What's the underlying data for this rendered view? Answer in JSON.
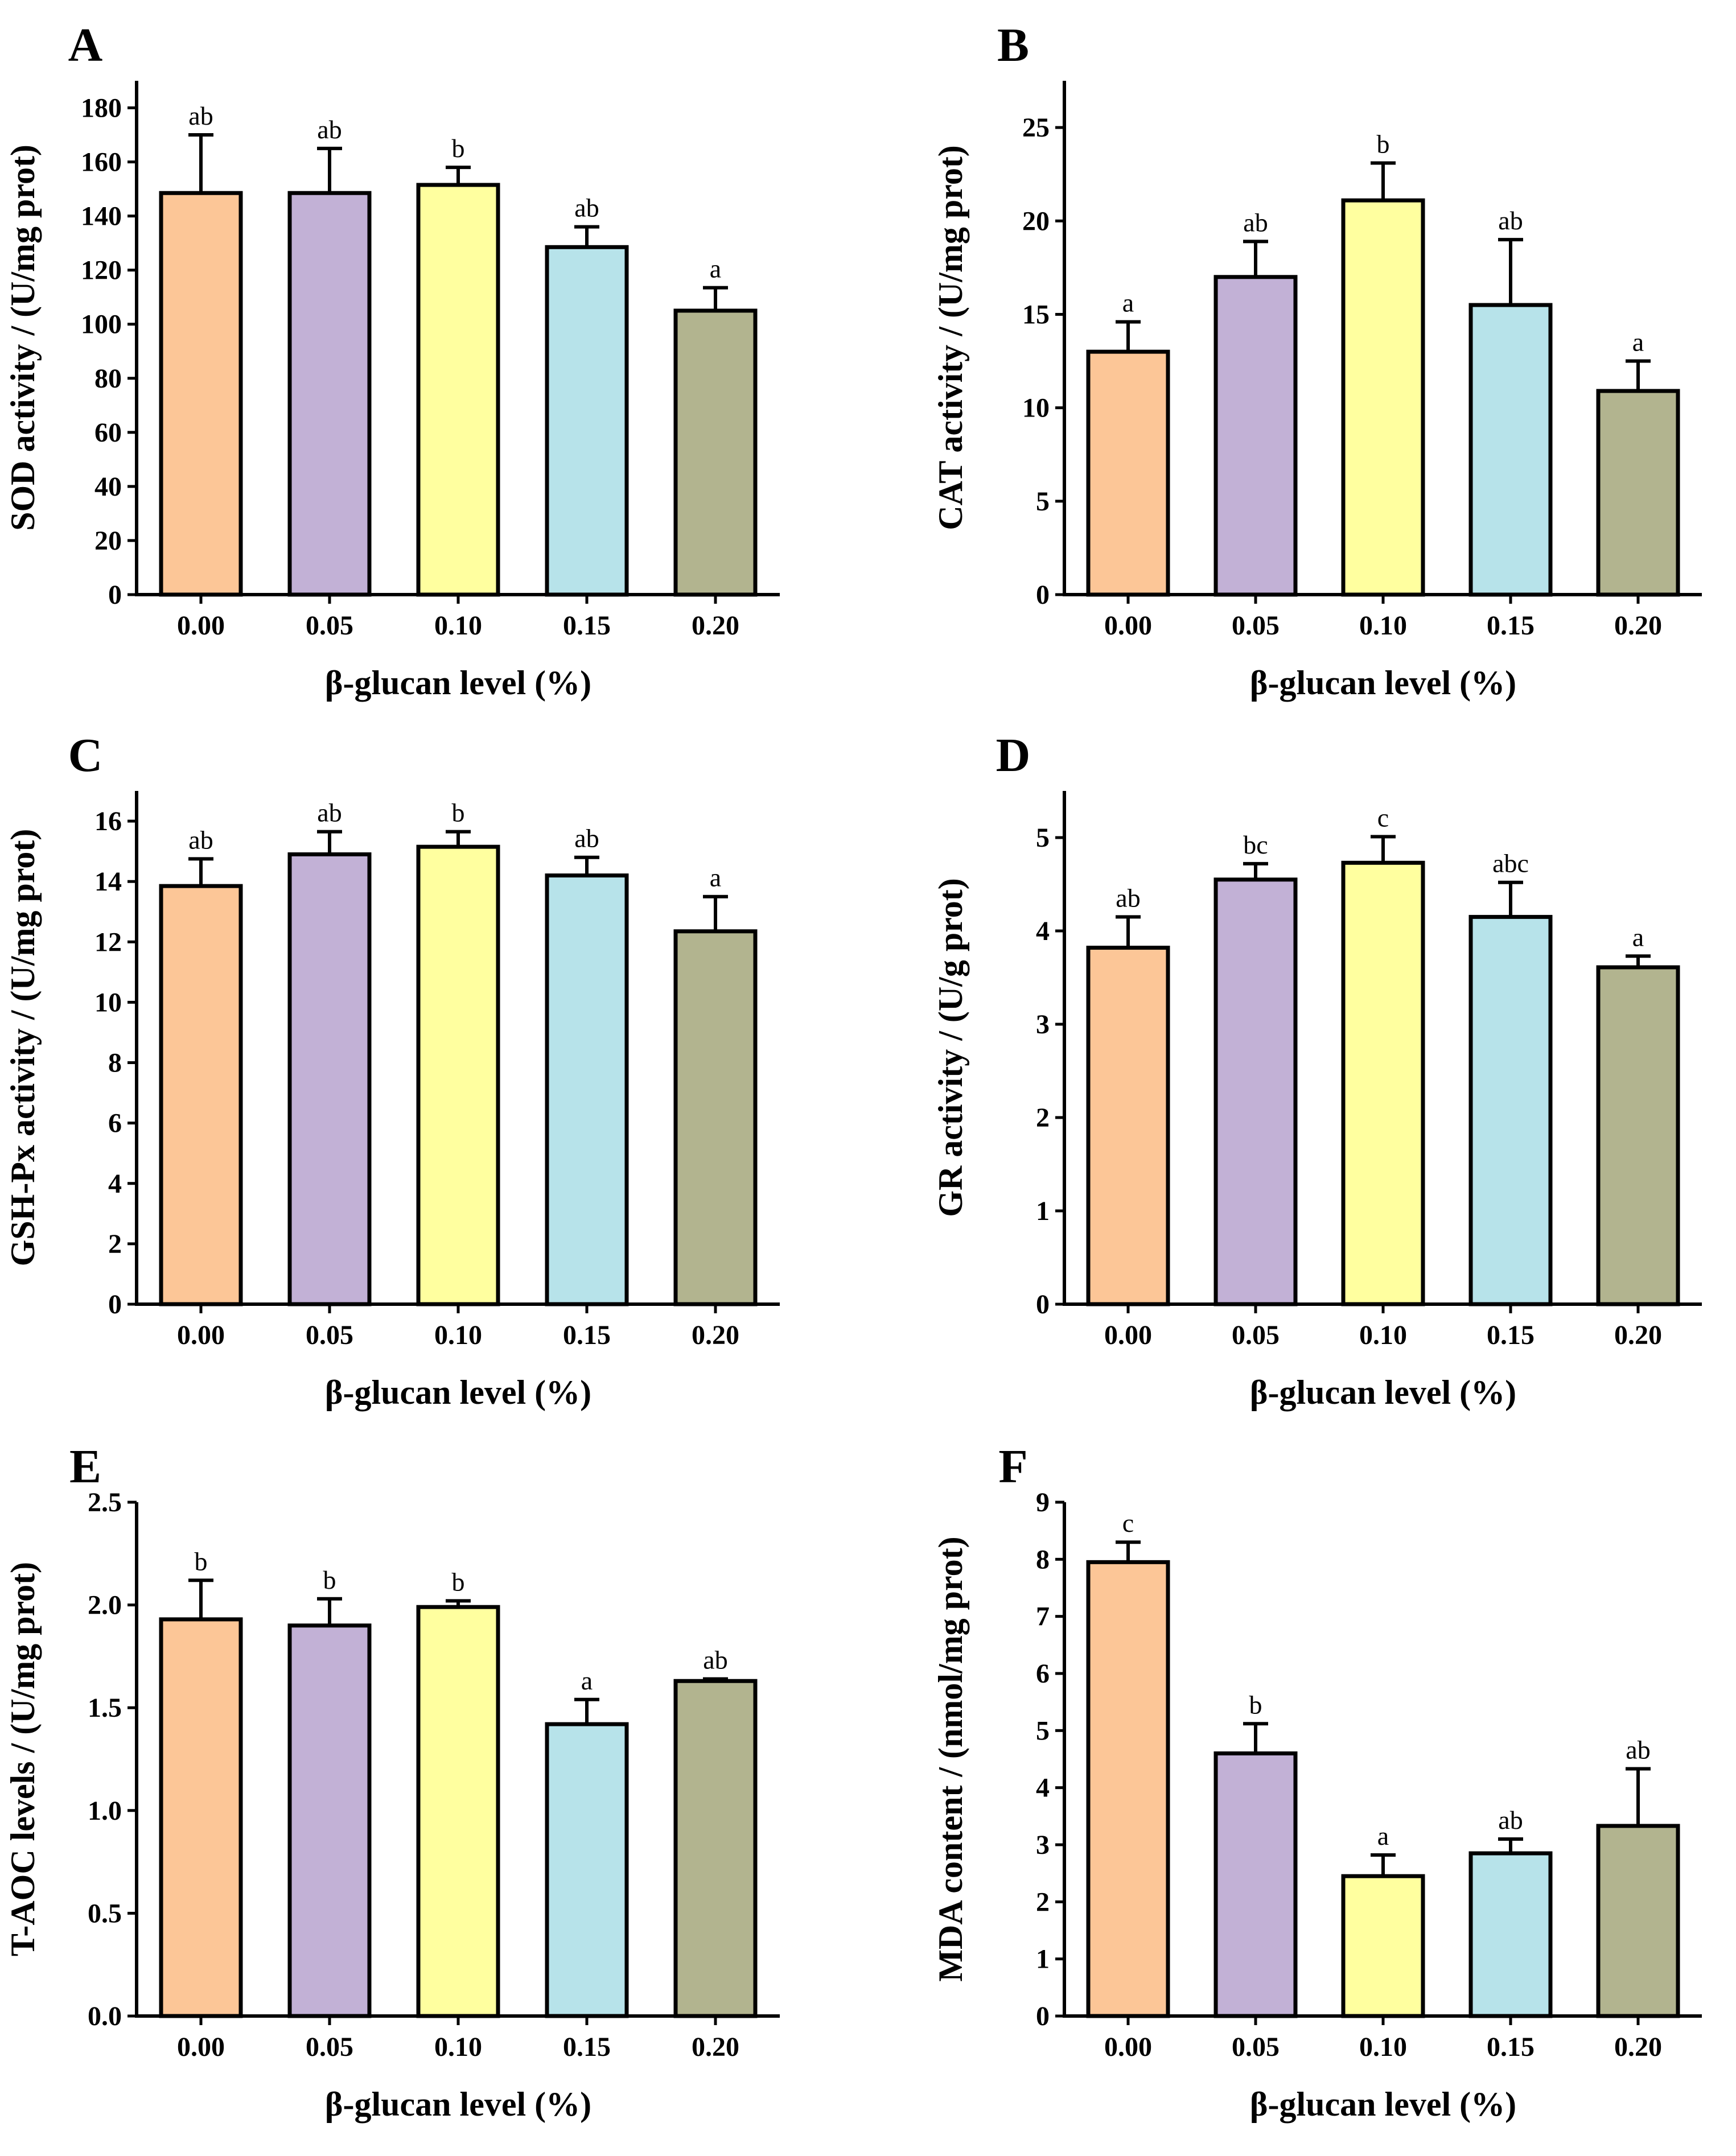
{
  "colors": [
    "#fcc697",
    "#c2b1d6",
    "#ffff9f",
    "#b7e3ea",
    "#b2b48f"
  ],
  "chart_data": [
    {
      "type": "bar",
      "panel": "A",
      "categories": [
        "0.00",
        "0.05",
        "0.10",
        "0.15",
        "0.20"
      ],
      "values": [
        148.5,
        148.5,
        151.5,
        128.5,
        105.0
      ],
      "errors": [
        21.5,
        16.5,
        6.5,
        7.5,
        8.5
      ],
      "labels": [
        "ab",
        "ab",
        "b",
        "ab",
        "a"
      ],
      "ylabel": "SOD activity / (U/mg prot)",
      "xlabel": "β-glucan level (%)",
      "ylim": [
        0,
        190
      ],
      "yticks": [
        0,
        20,
        40,
        60,
        80,
        100,
        120,
        140,
        160,
        180
      ],
      "ytick_labels": [
        "0",
        "20",
        "40",
        "60",
        "80",
        "100",
        "120",
        "140",
        "160",
        "180"
      ]
    },
    {
      "type": "bar",
      "panel": "B",
      "categories": [
        "0.00",
        "0.05",
        "0.10",
        "0.15",
        "0.20"
      ],
      "values": [
        13.0,
        17.0,
        21.1,
        15.5,
        10.9
      ],
      "errors": [
        1.6,
        1.9,
        2.0,
        3.5,
        1.6
      ],
      "labels": [
        "a",
        "ab",
        "b",
        "ab",
        "a"
      ],
      "ylabel": "CAT activity / (U/mg prot)",
      "xlabel": "β-glucan level (%)",
      "ylim": [
        0,
        27.5
      ],
      "yticks": [
        0,
        5,
        10,
        15,
        20,
        25
      ],
      "ytick_labels": [
        "0",
        "5",
        "10",
        "15",
        "20",
        "25"
      ]
    },
    {
      "type": "bar",
      "panel": "C",
      "categories": [
        "0.00",
        "0.05",
        "0.10",
        "0.15",
        "0.20"
      ],
      "values": [
        13.85,
        14.9,
        15.15,
        14.2,
        12.35
      ],
      "errors": [
        0.9,
        0.75,
        0.5,
        0.6,
        1.15
      ],
      "labels": [
        "ab",
        "ab",
        "b",
        "ab",
        "a"
      ],
      "ylabel": "GSH-Px activity / (U/mg prot)",
      "xlabel": "β-glucan level (%)",
      "ylim": [
        0,
        17
      ],
      "yticks": [
        0,
        2,
        4,
        6,
        8,
        10,
        12,
        14,
        16
      ],
      "ytick_labels": [
        "0",
        "2",
        "4",
        "6",
        "8",
        "10",
        "12",
        "14",
        "16"
      ]
    },
    {
      "type": "bar",
      "panel": "D",
      "categories": [
        "0.00",
        "0.05",
        "0.10",
        "0.15",
        "0.20"
      ],
      "values": [
        3.82,
        4.55,
        4.73,
        4.15,
        3.61
      ],
      "errors": [
        0.33,
        0.17,
        0.28,
        0.37,
        0.12
      ],
      "labels": [
        "ab",
        "bc",
        "c",
        "abc",
        "a"
      ],
      "ylabel": "GR activity / (U/g prot)",
      "xlabel": "β-glucan level (%)",
      "ylim": [
        0,
        5.5
      ],
      "yticks": [
        0,
        1,
        2,
        3,
        4,
        5
      ],
      "ytick_labels": [
        "0",
        "1",
        "2",
        "3",
        "4",
        "5"
      ]
    },
    {
      "type": "bar",
      "panel": "E",
      "categories": [
        "0.00",
        "0.05",
        "0.10",
        "0.15",
        "0.20"
      ],
      "values": [
        1.93,
        1.9,
        1.99,
        1.42,
        1.63
      ],
      "errors": [
        0.19,
        0.13,
        0.03,
        0.12,
        0.01
      ],
      "labels": [
        "b",
        "b",
        "b",
        "a",
        "ab"
      ],
      "ylabel": "T-AOC levels / (U/mg prot)",
      "xlabel": "β-glucan level (%)",
      "ylim": [
        0,
        2.5
      ],
      "yticks": [
        0,
        0.5,
        1.0,
        1.5,
        2.0,
        2.5
      ],
      "ytick_labels": [
        "0.0",
        "0.5",
        "1.0",
        "1.5",
        "2.0",
        "2.5"
      ]
    },
    {
      "type": "bar",
      "panel": "F",
      "categories": [
        "0.00",
        "0.05",
        "0.10",
        "0.15",
        "0.20"
      ],
      "values": [
        7.95,
        4.6,
        2.45,
        2.85,
        3.33
      ],
      "errors": [
        0.35,
        0.52,
        0.37,
        0.25,
        1.0
      ],
      "labels": [
        "c",
        "b",
        "a",
        "ab",
        "ab"
      ],
      "ylabel": "MDA content / (nmol/mg prot)",
      "xlabel": "β-glucan level (%)",
      "ylim": [
        0,
        9
      ],
      "yticks": [
        0,
        1,
        2,
        3,
        4,
        5,
        6,
        7,
        8,
        9
      ],
      "ytick_labels": [
        "0",
        "1",
        "2",
        "3",
        "4",
        "5",
        "6",
        "7",
        "8",
        "9"
      ]
    }
  ]
}
